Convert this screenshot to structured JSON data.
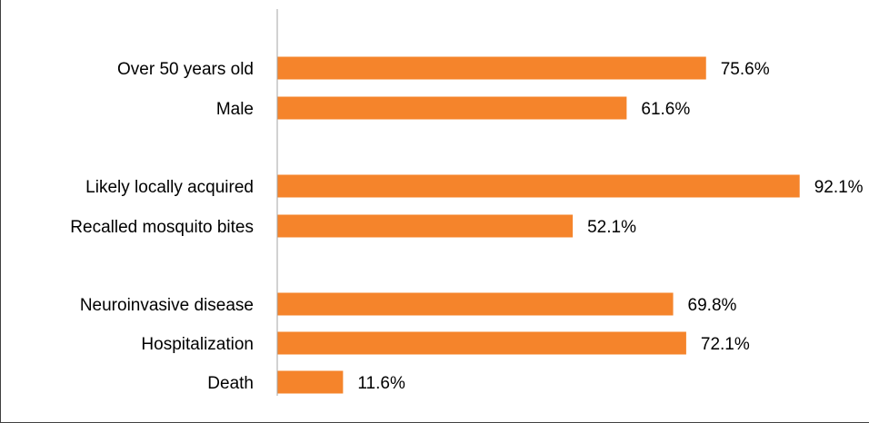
{
  "chart_data": {
    "type": "bar",
    "orientation": "horizontal",
    "title": "",
    "xlabel": "",
    "ylabel": "",
    "xlim": [
      0,
      100
    ],
    "grid": false,
    "legend": "none",
    "bar_color": "#F5842B",
    "axis_color": "#A6A6A6",
    "categories": [
      "Over 50 years old",
      "Male",
      "Likely locally acquired",
      "Recalled mosquito bites",
      "Neuroinvasive disease",
      "Hospitalization",
      "Death"
    ],
    "groups": [
      [
        0,
        1
      ],
      [
        2,
        3
      ],
      [
        4,
        5,
        6
      ]
    ],
    "values": [
      75.6,
      61.6,
      92.1,
      52.1,
      69.8,
      72.1,
      11.6
    ],
    "value_labels": [
      "75.6%",
      "61.6%",
      "92.1%",
      "52.1%",
      "69.8%",
      "72.1%",
      "11.6%"
    ]
  }
}
